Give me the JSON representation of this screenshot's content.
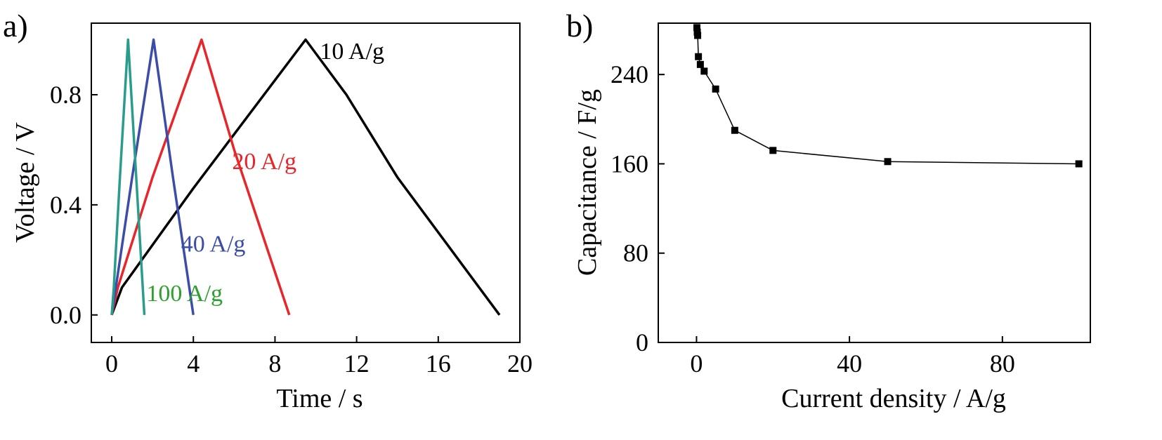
{
  "chart_data": [
    {
      "panel_label": "a)",
      "type": "line",
      "xlabel": "Time / s",
      "ylabel": "Voltage / V",
      "xlim": [
        -1.0,
        20
      ],
      "ylim": [
        -0.1,
        1.06
      ],
      "xticks": [
        0,
        4,
        8,
        12,
        16,
        20
      ],
      "xtick_labels": [
        "0",
        "4",
        "8",
        "12",
        "16",
        "20"
      ],
      "yticks": [
        0.0,
        0.4,
        0.8
      ],
      "ytick_labels": [
        "0.0",
        "0.4",
        "0.8"
      ],
      "grid": false,
      "series": [
        {
          "name": "10 A/g",
          "color": "#000000",
          "x": [
            0.0,
            0.5,
            4.0,
            9.5,
            11.5,
            14.0,
            16.5,
            19.0
          ],
          "y": [
            0.0,
            0.1,
            0.46,
            1.0,
            0.8,
            0.5,
            0.25,
            0.0
          ],
          "label_at": [
            10.2,
            0.93
          ]
        },
        {
          "name": "20 A/g",
          "color": "#e8262a",
          "x": [
            0.0,
            0.3,
            2.0,
            4.4,
            6.0,
            8.7
          ],
          "y": [
            0.0,
            0.1,
            0.5,
            1.0,
            0.6,
            0.0
          ],
          "label_at": [
            5.9,
            0.53
          ]
        },
        {
          "name": "40 A/g",
          "color": "#3b4da8",
          "x": [
            0.0,
            0.2,
            1.0,
            2.05,
            3.0,
            4.0
          ],
          "y": [
            0.0,
            0.1,
            0.5,
            1.0,
            0.5,
            0.0
          ],
          "label_at": [
            3.4,
            0.23
          ]
        },
        {
          "name": "100 A/g",
          "color": "#2a9c8c",
          "x": [
            0.0,
            0.1,
            0.4,
            0.8,
            1.2,
            1.6
          ],
          "y": [
            0.0,
            0.1,
            0.5,
            1.0,
            0.5,
            0.0
          ],
          "label_at": [
            1.7,
            0.05
          ],
          "label_color": "#2ea02e"
        }
      ]
    },
    {
      "panel_label": "b)",
      "type": "line",
      "xlabel": "Current density / A/g",
      "ylabel": "Capacitance / F/g",
      "xlim": [
        -10,
        103
      ],
      "ylim": [
        0,
        286
      ],
      "xticks": [
        0,
        40,
        80
      ],
      "xtick_labels": [
        "0",
        "40",
        "80"
      ],
      "yticks": [
        0,
        80,
        160,
        240
      ],
      "ytick_labels": [
        "0",
        "80",
        "160",
        "240"
      ],
      "grid": false,
      "marker": "square",
      "series": [
        {
          "color": "#000000",
          "x": [
            0.1,
            0.2,
            0.3,
            0.5,
            1,
            2,
            5,
            10,
            20,
            50,
            100
          ],
          "y": [
            282,
            278,
            275,
            256,
            249,
            243,
            227,
            190,
            172,
            162,
            160
          ]
        }
      ]
    }
  ]
}
